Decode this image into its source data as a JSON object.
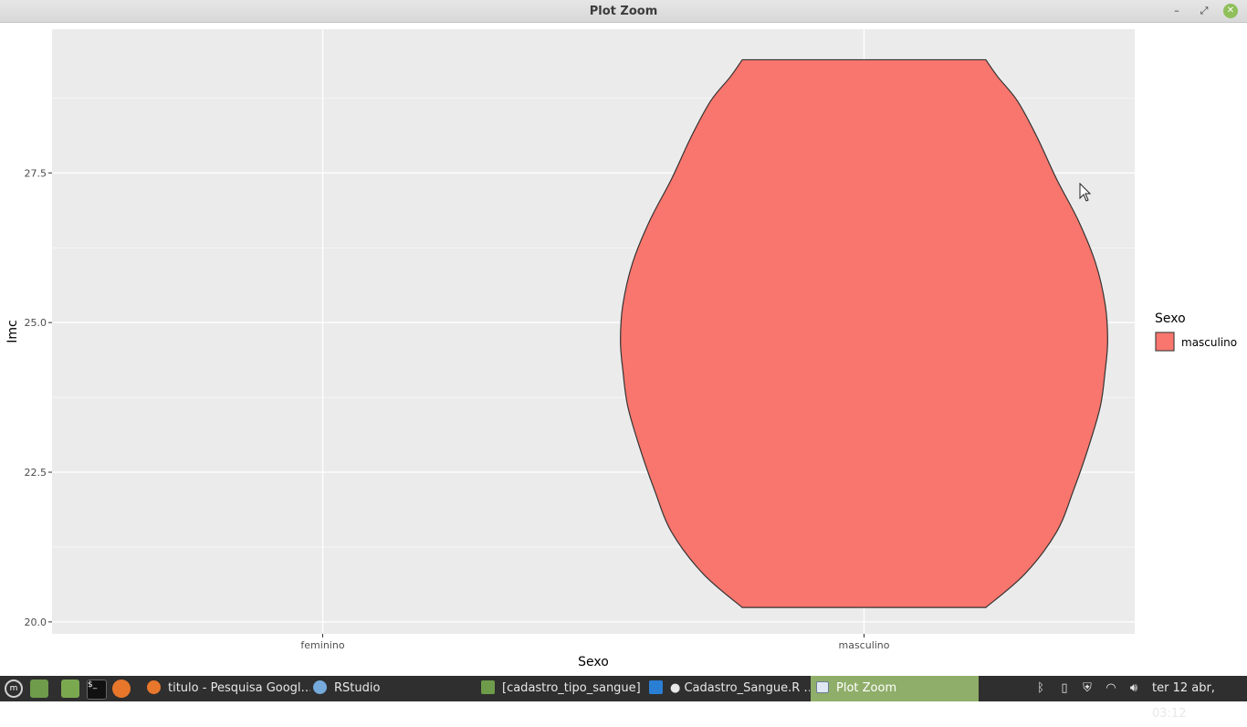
{
  "window": {
    "title": "Plot Zoom",
    "minimize_glyph": "–",
    "maximize_glyph": "⤢",
    "close_glyph": "✕"
  },
  "chart_data": {
    "type": "violin",
    "title": "",
    "xlabel": "Sexo",
    "ylabel": "Imc",
    "categories": [
      "feminino",
      "masculino"
    ],
    "ylim": [
      19.8,
      29.9
    ],
    "yticks": [
      20.0,
      22.5,
      25.0,
      27.5
    ],
    "ytick_labels": [
      "20.0",
      "22.5",
      "25.0",
      "27.5"
    ],
    "grid": true,
    "legend": {
      "title": "Sexo",
      "entries": [
        "masculino"
      ],
      "position": "right"
    },
    "series": [
      {
        "name": "masculino",
        "category": "masculino",
        "color": "#F8766D",
        "y_min": 20.24,
        "y_max": 29.39,
        "density_profile": [
          [
            20.24,
            0.5
          ],
          [
            20.8,
            0.66
          ],
          [
            21.5,
            0.79
          ],
          [
            22.2,
            0.86
          ],
          [
            22.9,
            0.92
          ],
          [
            23.6,
            0.97
          ],
          [
            24.2,
            0.99
          ],
          [
            24.7,
            1.0
          ],
          [
            25.3,
            0.99
          ],
          [
            26.0,
            0.95
          ],
          [
            26.7,
            0.88
          ],
          [
            27.4,
            0.79
          ],
          [
            28.1,
            0.71
          ],
          [
            28.7,
            0.63
          ],
          [
            29.1,
            0.55
          ],
          [
            29.39,
            0.5
          ]
        ]
      }
    ],
    "colors": {
      "panel_bg": "#EBEBEB",
      "grid": "#FFFFFF",
      "outline": "#333333"
    }
  },
  "taskbar": {
    "tasks": [
      {
        "label": "titulo - Pesquisa Googl…",
        "icon": "firefox-icon"
      },
      {
        "label": "RStudio",
        "icon": "rstudio-icon"
      },
      {
        "label": "[cadastro_tipo_sangue]",
        "icon": "folder-icon"
      },
      {
        "label": "● Cadastro_Sangue.R …",
        "icon": "vscode-icon"
      },
      {
        "label": "Plot Zoom",
        "icon": "window-icon",
        "active": true
      }
    ],
    "clock": "ter 12 abr, 03:12"
  }
}
